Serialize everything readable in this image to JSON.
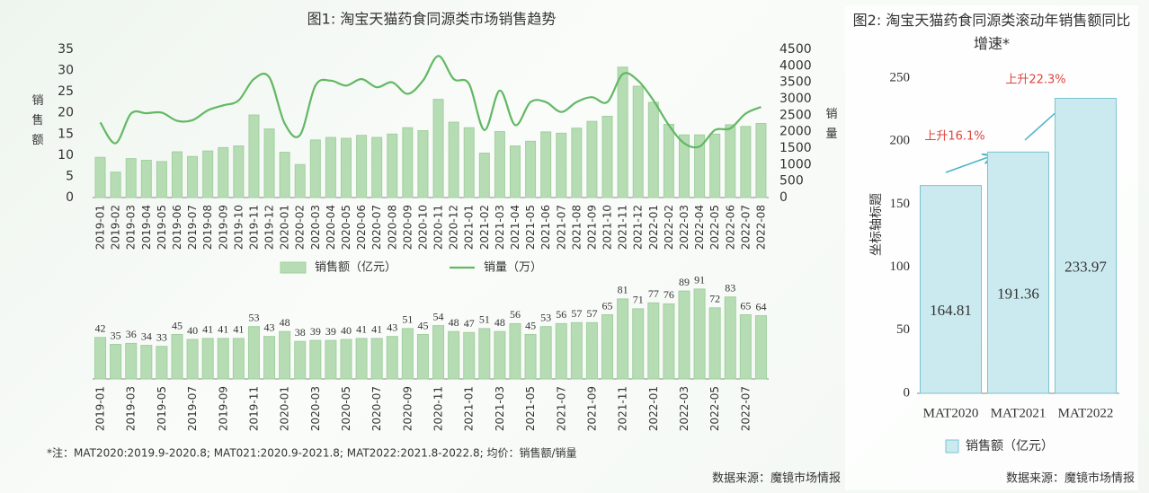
{
  "chart_data": [
    {
      "type": "combo",
      "title": "图1: 淘宝天猫药食同源类市场销售趋势",
      "ylabel": "销售额",
      "y2label": "销量",
      "categories": [
        "2019-01",
        "2019-02",
        "2019-03",
        "2019-04",
        "2019-05",
        "2019-06",
        "2019-07",
        "2019-08",
        "2019-09",
        "2019-10",
        "2019-11",
        "2019-12",
        "2020-01",
        "2020-02",
        "2020-03",
        "2020-04",
        "2020-05",
        "2020-06",
        "2020-07",
        "2020-08",
        "2020-09",
        "2020-10",
        "2020-11",
        "2020-12",
        "2021-01",
        "2021-02",
        "2021-03",
        "2021-04",
        "2021-05",
        "2021-06",
        "2021-07",
        "2021-08",
        "2021-09",
        "2021-10",
        "2021-11",
        "2021-12",
        "2022-01",
        "2022-02",
        "2022-03",
        "2022-04",
        "2022-05",
        "2022-06",
        "2022-07",
        "2022-08"
      ],
      "series": [
        {
          "name": "销售额（亿元）",
          "kind": "bar",
          "color": "#b6dcb4",
          "values": [
            9.5,
            6,
            9.2,
            8.8,
            8.5,
            10.8,
            9.7,
            11,
            11.8,
            12.2,
            19.5,
            16.2,
            10.7,
            7.8,
            13.6,
            14.2,
            14,
            14.7,
            14.2,
            15,
            16.5,
            15.8,
            23.2,
            17.8,
            16.5,
            10.5,
            15.6,
            12.2,
            13.3,
            15.5,
            15.2,
            16.4,
            18,
            19.2,
            30.8,
            26.3,
            22.5,
            17.3,
            14.8,
            14.8,
            15,
            17.2,
            16.8,
            17.5
          ]
        },
        {
          "name": "销量（万）",
          "kind": "line",
          "axis": "y2",
          "color": "#62b863",
          "values": [
            2280,
            1650,
            2550,
            2560,
            2580,
            2330,
            2350,
            2650,
            2800,
            2950,
            3600,
            3650,
            2250,
            1900,
            3400,
            3550,
            3400,
            3600,
            3350,
            3500,
            3150,
            3550,
            4300,
            3600,
            3450,
            2050,
            3250,
            2200,
            2900,
            2900,
            2600,
            2900,
            3050,
            2900,
            3750,
            3550,
            2950,
            2200,
            1650,
            1550,
            2050,
            2100,
            2550,
            2750
          ]
        }
      ],
      "ylim": [
        0,
        35
      ],
      "yticks": [
        0,
        5,
        10,
        15,
        20,
        25,
        30,
        35
      ],
      "y2lim": [
        0,
        4500
      ],
      "y2ticks": [
        0,
        500,
        1000,
        1500,
        2000,
        2500,
        3000,
        3500,
        4000,
        4500
      ],
      "legend": "bottom"
    },
    {
      "type": "bar",
      "color": "#b6dcb4",
      "categories": [
        "2019-01",
        null,
        "2019-03",
        null,
        "2019-05",
        null,
        "2019-07",
        null,
        "2019-09",
        null,
        "2019-11",
        null,
        "2020-01",
        null,
        "2020-03",
        null,
        "2020-05",
        null,
        "2020-07",
        null,
        "2020-09",
        null,
        "2020-11",
        null,
        "2021-01",
        null,
        "2021-03",
        null,
        "2021-05",
        null,
        "2021-07",
        null,
        "2021-09",
        null,
        "2021-11",
        null,
        "2022-01",
        null,
        "2022-03",
        null,
        "2022-05",
        null,
        "2022-07",
        null
      ],
      "values": [
        42,
        35,
        36,
        34,
        33,
        45,
        40,
        41,
        41,
        41,
        53,
        43,
        48,
        38,
        39,
        39,
        40,
        41,
        41,
        43,
        51,
        45,
        54,
        48,
        47,
        51,
        48,
        56,
        45,
        53,
        56,
        57,
        57,
        65,
        81,
        71,
        77,
        76,
        89,
        91,
        72,
        83,
        65,
        64
      ]
    },
    {
      "type": "bar",
      "title": "图2: 淘宝天猫药食同源类滚动年销售额同比增速*",
      "ylabel": "坐标轴标题",
      "categories": [
        "MAT2020",
        "MAT2021",
        "MAT2022"
      ],
      "series": [
        {
          "name": "销售额（亿元）",
          "color": "#cbeaf0",
          "values": [
            164.81,
            191.36,
            233.97
          ]
        }
      ],
      "ylim": [
        0,
        250
      ],
      "yticks": [
        0,
        50,
        100,
        150,
        200,
        250
      ],
      "annotations": [
        "上升16.1%",
        "上升22.3%"
      ],
      "legend": "bottom"
    }
  ],
  "footnote": "*注：MAT2020:2019.9-2020.8; MAT021:2020.9-2021.8; MAT2022:2021.8-2022.8; 均价：销售额/销量",
  "sources": [
    "数据来源：魔镜市场情报",
    "数据来源：魔镜市场情报"
  ]
}
